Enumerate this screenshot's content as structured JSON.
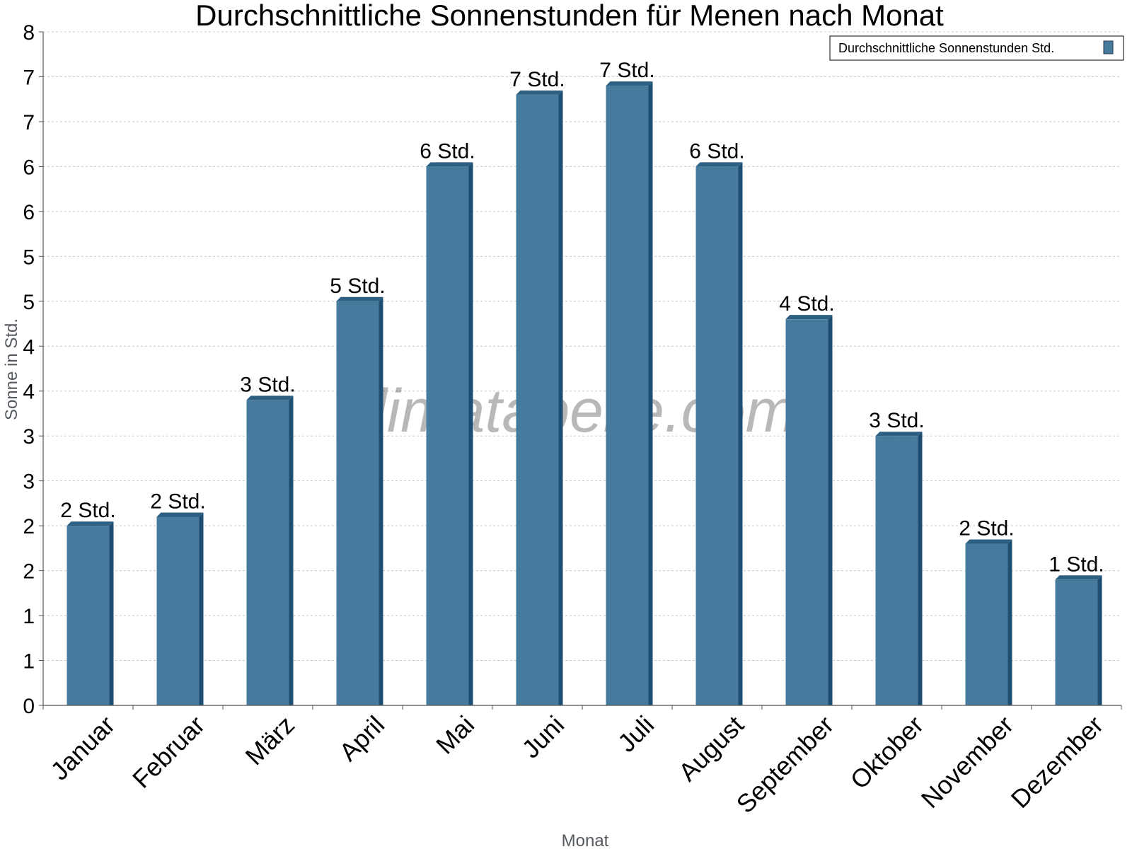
{
  "chart_data": {
    "type": "bar",
    "title": "Durchschnittliche Sonnenstunden für Menen nach Monat",
    "xlabel": "Monat",
    "ylabel": "Sonne in Std.",
    "categories": [
      "Januar",
      "Februar",
      "März",
      "April",
      "Mai",
      "Juni",
      "Juli",
      "August",
      "September",
      "Oktober",
      "November",
      "Dezember"
    ],
    "series": [
      {
        "name": "Durchschnittliche Sonnenstunden Std.",
        "values": [
          2.0,
          2.1,
          3.4,
          4.5,
          6.0,
          6.8,
          6.9,
          6.0,
          4.3,
          3.0,
          1.8,
          1.4
        ],
        "labels": [
          "2 Std.",
          "2 Std.",
          "3 Std.",
          "5 Std.",
          "6 Std.",
          "7 Std.",
          "7 Std.",
          "6 Std.",
          "4 Std.",
          "3 Std.",
          "2 Std.",
          "1 Std."
        ]
      }
    ],
    "ylim": [
      0,
      7.5
    ],
    "yticks": [
      0,
      0.5,
      1.0,
      1.5,
      2.0,
      2.5,
      3.0,
      3.5,
      4.0,
      4.5,
      5.0,
      5.5,
      6.0,
      6.5,
      7.0,
      7.5
    ],
    "ytick_labels": [
      "0",
      "1",
      "1",
      "2",
      "2",
      "3",
      "3",
      "4",
      "4",
      "5",
      "5",
      "6",
      "6",
      "7",
      "7",
      "8"
    ],
    "grid": true,
    "legend_position": "top-right",
    "watermark": "klimatabelle.com",
    "colors": {
      "bar": "#467b9d",
      "bar_side": "#1e4f72",
      "bar_top": "#2d5f82",
      "grid": "#c8c8c8",
      "axis": "#555555"
    }
  }
}
